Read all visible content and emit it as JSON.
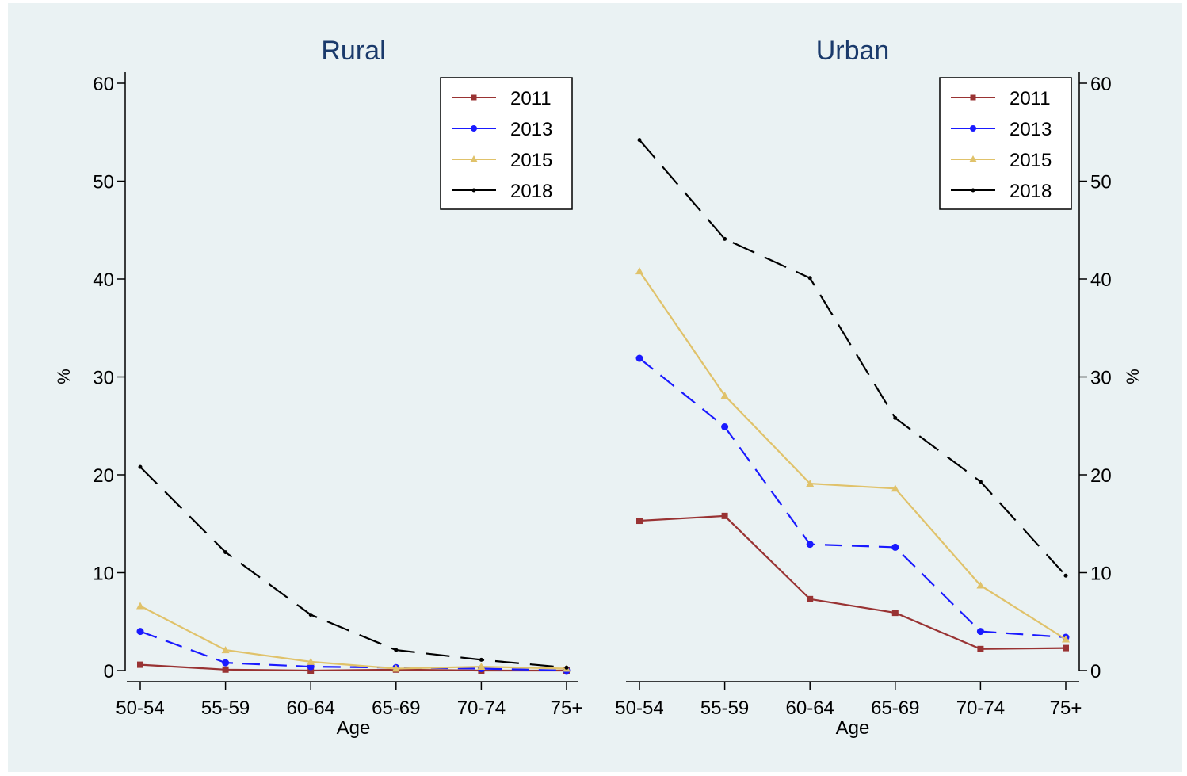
{
  "colors": {
    "background": "#eaf2f3",
    "axis": "#000000",
    "title": "#1a3a6b",
    "s2011": "#993333",
    "s2013": "#1a1aff",
    "s2015": "#e0c26a",
    "s2018": "#000000"
  },
  "chart_data": [
    {
      "type": "line",
      "title": "Rural",
      "xlabel": "Age",
      "ylabel": "%",
      "y_axis_side": "left",
      "ylim": [
        0,
        60
      ],
      "yticks": [
        "0",
        "10",
        "20",
        "30",
        "40",
        "50",
        "60"
      ],
      "grid": false,
      "legend_position": "top-right",
      "categories": [
        "50-54",
        "55-59",
        "60-64",
        "65-69",
        "70-74",
        "75+"
      ],
      "series": [
        {
          "name": "2011",
          "color": "#993333",
          "dash": "solid",
          "marker": "square",
          "values": [
            0.6,
            0.1,
            0.0,
            0.1,
            0.0,
            0.0
          ]
        },
        {
          "name": "2013",
          "color": "#1a1aff",
          "dash": "dash",
          "marker": "circle",
          "values": [
            4.0,
            0.8,
            0.4,
            0.3,
            0.2,
            0.0
          ]
        },
        {
          "name": "2015",
          "color": "#e0c26a",
          "dash": "solid",
          "marker": "triangle",
          "values": [
            6.6,
            2.1,
            0.9,
            0.2,
            0.4,
            0.2
          ]
        },
        {
          "name": "2018",
          "color": "#000000",
          "dash": "longdash",
          "marker": "dot",
          "values": [
            20.8,
            12.1,
            5.7,
            2.1,
            1.1,
            0.3
          ]
        }
      ]
    },
    {
      "type": "line",
      "title": "Urban",
      "xlabel": "Age",
      "ylabel": "%",
      "y_axis_side": "right",
      "ylim": [
        0,
        60
      ],
      "yticks": [
        "0",
        "10",
        "20",
        "30",
        "40",
        "50",
        "60"
      ],
      "grid": false,
      "legend_position": "top-right",
      "categories": [
        "50-54",
        "55-59",
        "60-64",
        "65-69",
        "70-74",
        "75+"
      ],
      "series": [
        {
          "name": "2011",
          "color": "#993333",
          "dash": "solid",
          "marker": "square",
          "values": [
            15.3,
            15.8,
            7.3,
            5.9,
            2.2,
            2.3
          ]
        },
        {
          "name": "2013",
          "color": "#1a1aff",
          "dash": "dash",
          "marker": "circle",
          "values": [
            31.9,
            24.9,
            12.9,
            12.6,
            4.0,
            3.4
          ]
        },
        {
          "name": "2015",
          "color": "#e0c26a",
          "dash": "solid",
          "marker": "triangle",
          "values": [
            40.8,
            28.1,
            19.1,
            18.6,
            8.7,
            3.2
          ]
        },
        {
          "name": "2018",
          "color": "#000000",
          "dash": "longdash",
          "marker": "dot",
          "values": [
            54.2,
            44.1,
            40.1,
            25.8,
            19.3,
            9.7
          ]
        }
      ]
    }
  ]
}
